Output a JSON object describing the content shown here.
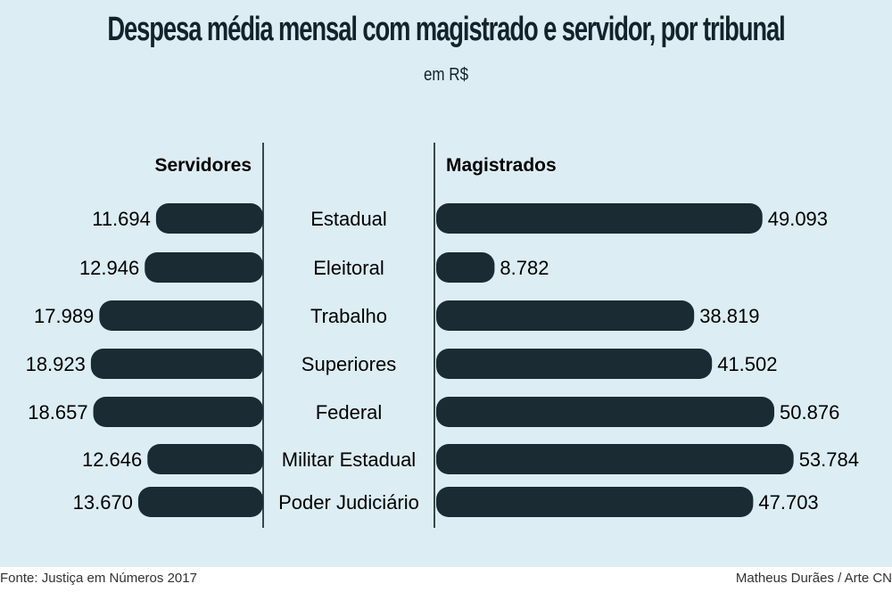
{
  "title": "Despesa média mensal com magistrado e servidor, por tribunal",
  "subtitle": "em R$",
  "source": "Fonte: Justiça em Números 2017",
  "credit": "Matheus Durães / Arte CN",
  "colors": {
    "bar": "#1a2b33",
    "background": "#dcedf3"
  },
  "chart_data": {
    "type": "bar",
    "title": "Despesa média mensal com magistrado e servidor, por tribunal",
    "unit": "em R$",
    "categories": [
      "Estadual",
      "Eleitoral",
      "Trabalho",
      "Superiores",
      "Federal",
      "Militar Estadual",
      "Poder Judiciário"
    ],
    "series": [
      {
        "name": "Servidores",
        "values": [
          11694,
          12946,
          17989,
          18923,
          18657,
          12646,
          13670
        ],
        "labels": [
          "11.694",
          "12.946",
          "17.989",
          "18.923",
          "18.657",
          "12.646",
          "13.670"
        ]
      },
      {
        "name": "Magistrados",
        "values": [
          49093,
          8782,
          38819,
          41502,
          50876,
          53784,
          47703
        ],
        "labels": [
          "49.093",
          "8.782",
          "38.819",
          "41.502",
          "50.876",
          "53.784",
          "47.703"
        ]
      }
    ]
  }
}
